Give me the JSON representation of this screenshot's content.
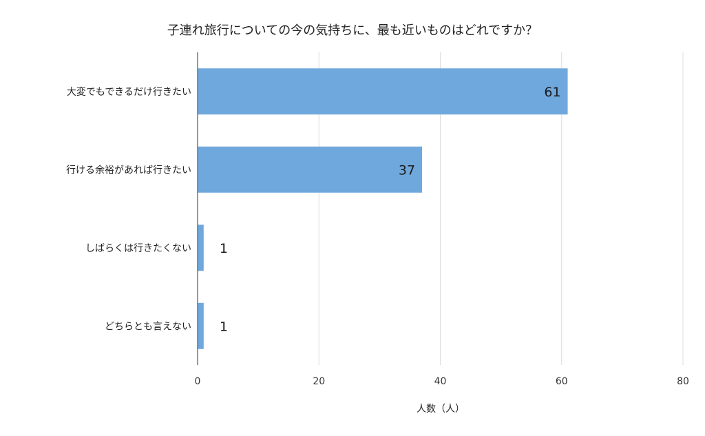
{
  "chart_data": {
    "type": "bar",
    "orientation": "horizontal",
    "title": "子連れ旅行についての今の気持ちに、最も近いものはどれですか？",
    "xlabel": "人数（人）",
    "ylabel": "",
    "categories": [
      "大変でもできるだけ行きたい",
      "行ける余裕があれば行きたい",
      "しばらくは行きたくない",
      "どちらとも言えない"
    ],
    "values": [
      61,
      37,
      1,
      1
    ],
    "data_labels": [
      "61",
      "37",
      "1",
      "1"
    ],
    "xlim": [
      0,
      80
    ],
    "xticks": [
      0,
      20,
      40,
      60,
      80
    ],
    "grid": true,
    "legend": "none",
    "colors": {
      "bar": "#6fa8dc",
      "grid": "#dcdcdc",
      "axis": "#555555",
      "text": "#222222"
    }
  }
}
